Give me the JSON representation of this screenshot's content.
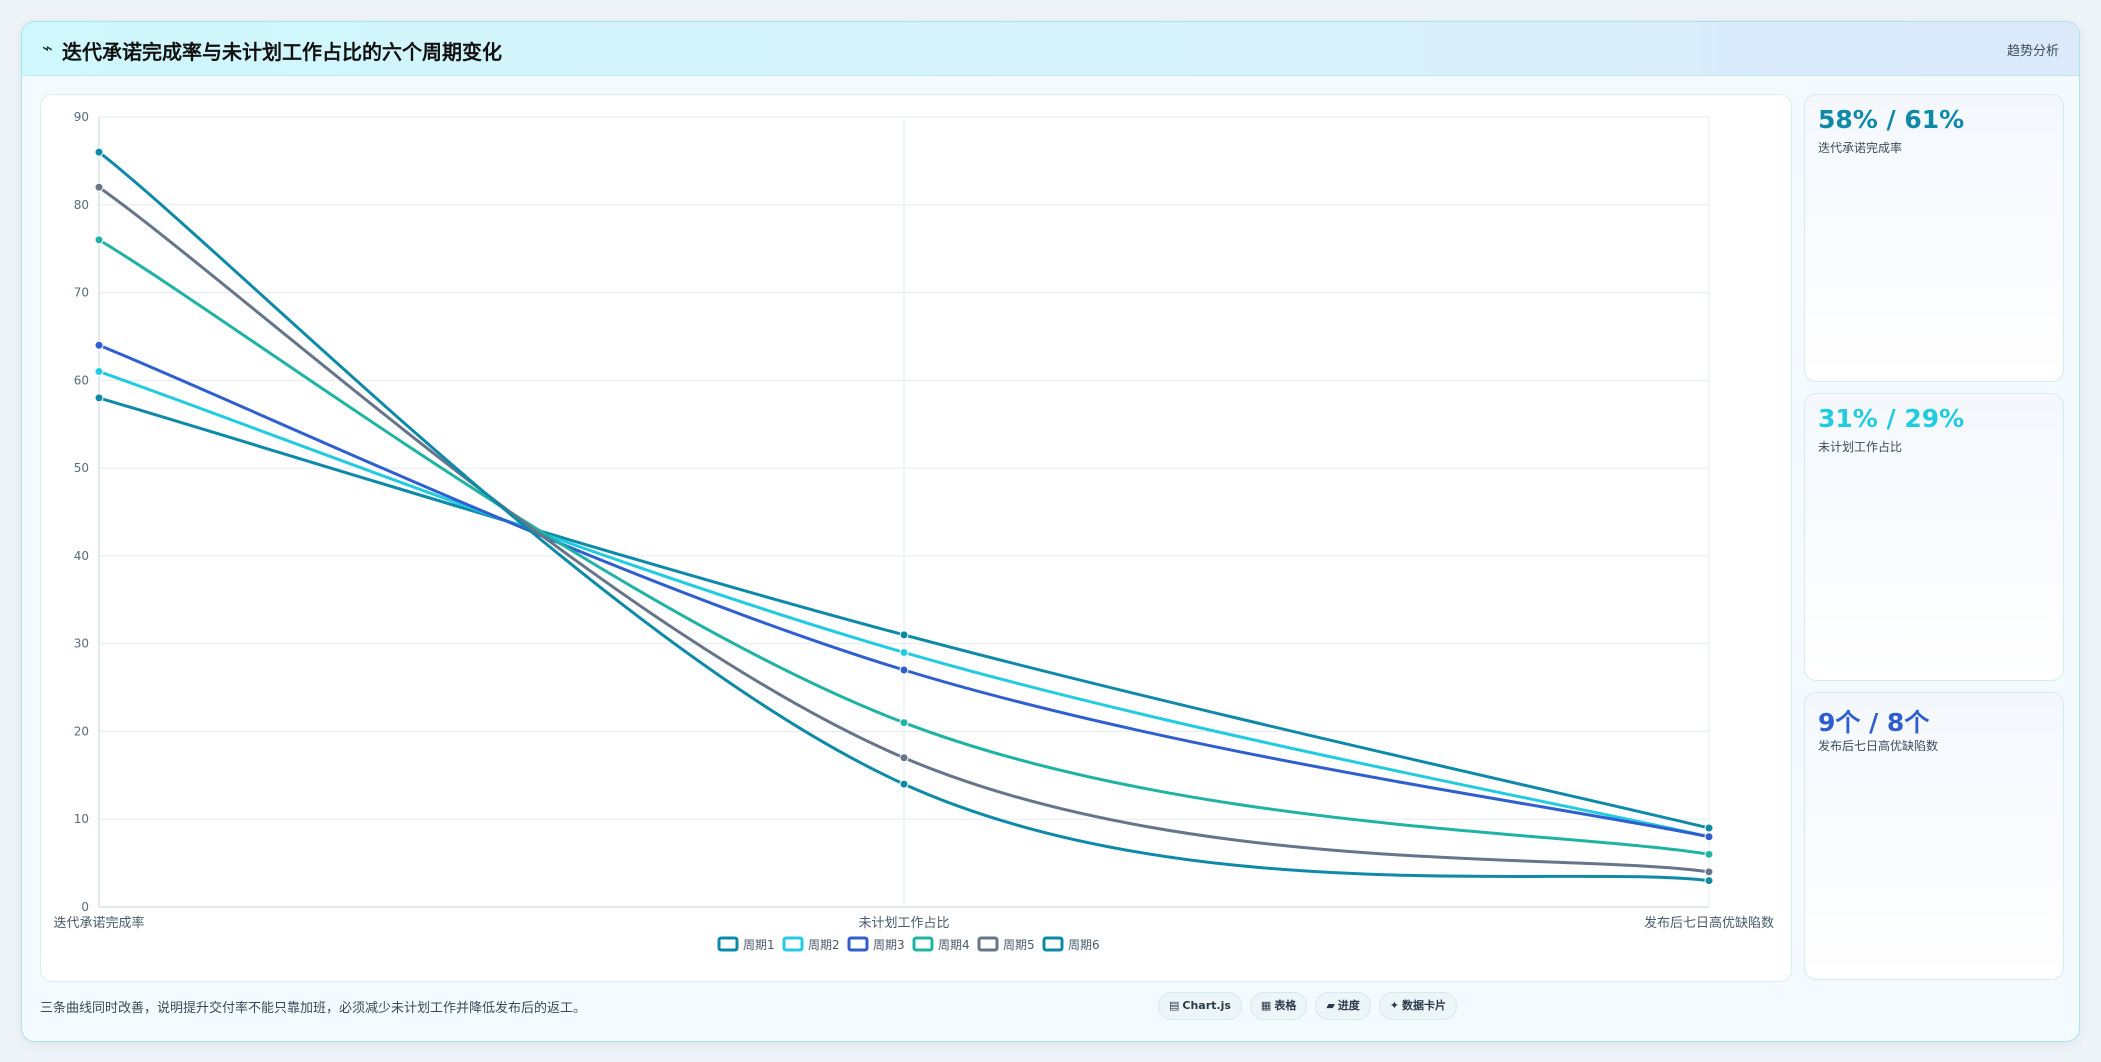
{
  "header": {
    "icon": "trend-line-icon",
    "icon_glyph": "⌁",
    "title": "迭代承诺完成率与未计划工作占比的六个周期变化",
    "subtitle": "趋势分析"
  },
  "cards": [
    {
      "value": "58% / 61%",
      "label": "迭代承诺完成率",
      "color": "#0e8aa8"
    },
    {
      "value": "31% / 29%",
      "label": "未计划工作占比",
      "color": "#22cbe0"
    },
    {
      "value": "9个 / 8个",
      "label": "发布后七日高优缺陷数",
      "color": "#2f5fce"
    }
  ],
  "footer": {
    "note": "三条曲线同时改善，说明提升交付率不能只靠加班，必须减少未计划工作并降低发布后的返工。",
    "chips": [
      {
        "icon": "chart-icon",
        "glyph": "▤",
        "label": "Chart.js"
      },
      {
        "icon": "table-icon",
        "glyph": "▦",
        "label": "表格"
      },
      {
        "icon": "progress-icon",
        "glyph": "▰",
        "label": "进度"
      },
      {
        "icon": "data-card-icon",
        "glyph": "✦",
        "label": "数据卡片"
      }
    ]
  },
  "chart_data": {
    "type": "line",
    "categories": [
      "迭代承诺完成率",
      "未计划工作占比",
      "发布后七日高优缺陷数"
    ],
    "ylim": [
      0,
      90
    ],
    "yticks": [
      0,
      10,
      20,
      30,
      40,
      50,
      60,
      70,
      80,
      90
    ],
    "grid": true,
    "legend": "bottom",
    "series": [
      {
        "name": "周期1",
        "values": [
          58,
          31,
          9
        ],
        "color": "#0e8aa8"
      },
      {
        "name": "周期2",
        "values": [
          61,
          29,
          8
        ],
        "color": "#22cbe0"
      },
      {
        "name": "周期3",
        "values": [
          64,
          27,
          8
        ],
        "color": "#2f5fce"
      },
      {
        "name": "周期4",
        "values": [
          76,
          21,
          6
        ],
        "color": "#1fb3a3"
      },
      {
        "name": "周期5",
        "values": [
          82,
          17,
          4
        ],
        "color": "#667589"
      },
      {
        "name": "周期6",
        "values": [
          86,
          14,
          3
        ],
        "color": "#0e8aa8"
      }
    ]
  }
}
